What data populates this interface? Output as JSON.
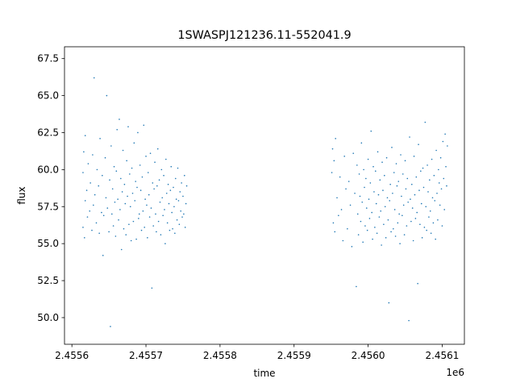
{
  "chart_data": {
    "type": "scatter",
    "title": "1SWASPJ121236.11-552041.9",
    "xlabel": "time",
    "ylabel": "flux",
    "x_offset_label": "1e6",
    "xlim": [
      2.45559,
      2.45613
    ],
    "ylim": [
      48.2,
      68.3
    ],
    "x_ticks": [
      {
        "value": 2.4556,
        "label": "2.4556"
      },
      {
        "value": 2.4557,
        "label": "2.4557"
      },
      {
        "value": 2.4558,
        "label": "2.4558"
      },
      {
        "value": 2.4559,
        "label": "2.4559"
      },
      {
        "value": 2.456,
        "label": "2.4560"
      },
      {
        "value": 2.4561,
        "label": "2.4561"
      }
    ],
    "y_ticks": [
      {
        "value": 50.0,
        "label": "50.0"
      },
      {
        "value": 52.5,
        "label": "52.5"
      },
      {
        "value": 55.0,
        "label": "55.0"
      },
      {
        "value": 57.5,
        "label": "57.5"
      },
      {
        "value": 60.0,
        "label": "60.0"
      },
      {
        "value": 62.5,
        "label": "62.5"
      },
      {
        "value": 65.0,
        "label": "65.0"
      },
      {
        "value": 67.5,
        "label": "67.5"
      }
    ],
    "grid": false,
    "color": "#1f77b4",
    "series": [
      {
        "points": [
          [
            2.455615,
            56.1
          ],
          [
            2.455615,
            59.8
          ],
          [
            2.455616,
            61.2
          ],
          [
            2.455617,
            55.4
          ],
          [
            2.455618,
            57.9
          ],
          [
            2.455618,
            62.3
          ],
          [
            2.45562,
            58.6
          ],
          [
            2.455621,
            56.8
          ],
          [
            2.455622,
            60.4
          ],
          [
            2.455624,
            57.2
          ],
          [
            2.455625,
            59.1
          ],
          [
            2.455627,
            55.9
          ],
          [
            2.455628,
            61.0
          ],
          [
            2.455629,
            57.6
          ],
          [
            2.45563,
            66.2
          ],
          [
            2.455631,
            58.3
          ],
          [
            2.455633,
            56.4
          ],
          [
            2.455634,
            60.0
          ],
          [
            2.455636,
            58.9
          ],
          [
            2.455637,
            55.7
          ],
          [
            2.455638,
            62.1
          ],
          [
            2.45564,
            57.1
          ],
          [
            2.455641,
            59.6
          ],
          [
            2.455642,
            54.2
          ],
          [
            2.455643,
            56.9
          ],
          [
            2.455645,
            60.8
          ],
          [
            2.455646,
            58.1
          ],
          [
            2.455647,
            65.0
          ],
          [
            2.455648,
            57.4
          ],
          [
            2.45565,
            55.8
          ],
          [
            2.455651,
            59.3
          ],
          [
            2.455652,
            49.4
          ],
          [
            2.455653,
            61.6
          ],
          [
            2.455654,
            57.0
          ],
          [
            2.455655,
            58.7
          ],
          [
            2.455656,
            56.2
          ],
          [
            2.455657,
            60.2
          ],
          [
            2.455658,
            57.8
          ],
          [
            2.455659,
            55.5
          ],
          [
            2.45566,
            59.9
          ],
          [
            2.455661,
            62.7
          ],
          [
            2.455662,
            58.0
          ],
          [
            2.455663,
            56.6
          ],
          [
            2.455664,
            63.4
          ],
          [
            2.455665,
            57.3
          ],
          [
            2.455666,
            59.4
          ],
          [
            2.455667,
            54.6
          ],
          [
            2.455668,
            58.5
          ],
          [
            2.455669,
            61.3
          ],
          [
            2.45567,
            56.0
          ],
          [
            2.455671,
            59.0
          ],
          [
            2.455672,
            57.7
          ],
          [
            2.455673,
            55.6
          ],
          [
            2.455674,
            60.6
          ],
          [
            2.455675,
            58.2
          ],
          [
            2.455676,
            62.9
          ],
          [
            2.455677,
            56.3
          ],
          [
            2.455678,
            59.7
          ],
          [
            2.455679,
            57.5
          ],
          [
            2.45568,
            55.2
          ],
          [
            2.455681,
            60.1
          ],
          [
            2.455682,
            58.4
          ],
          [
            2.455683,
            56.5
          ],
          [
            2.455684,
            61.8
          ],
          [
            2.455685,
            57.9
          ],
          [
            2.455686,
            59.2
          ],
          [
            2.455687,
            55.3
          ],
          [
            2.455688,
            58.8
          ],
          [
            2.455689,
            62.5
          ],
          [
            2.45569,
            56.7
          ],
          [
            2.455691,
            57.0
          ],
          [
            2.455692,
            60.3
          ],
          [
            2.455693,
            58.6
          ],
          [
            2.455694,
            55.9
          ],
          [
            2.455695,
            59.5
          ],
          [
            2.455696,
            57.2
          ],
          [
            2.455697,
            63.0
          ],
          [
            2.455698,
            56.1
          ],
          [
            2.455699,
            58.0
          ],
          [
            2.4557,
            60.9
          ],
          [
            2.455701,
            57.6
          ],
          [
            2.455702,
            55.4
          ],
          [
            2.455703,
            59.8
          ],
          [
            2.455704,
            58.3
          ],
          [
            2.455705,
            56.8
          ],
          [
            2.455706,
            61.1
          ],
          [
            2.455707,
            57.4
          ],
          [
            2.455708,
            52.0
          ],
          [
            2.455709,
            59.1
          ],
          [
            2.45571,
            56.2
          ],
          [
            2.455711,
            58.7
          ],
          [
            2.455712,
            60.5
          ],
          [
            2.455713,
            57.0
          ],
          [
            2.455714,
            55.8
          ],
          [
            2.455715,
            58.9
          ],
          [
            2.455716,
            61.4
          ],
          [
            2.455717,
            56.5
          ],
          [
            2.455718,
            59.3
          ],
          [
            2.455719,
            57.8
          ],
          [
            2.45572,
            55.6
          ],
          [
            2.455721,
            60.0
          ],
          [
            2.455722,
            58.1
          ],
          [
            2.455723,
            56.9
          ],
          [
            2.455724,
            59.6
          ],
          [
            2.455725,
            57.3
          ],
          [
            2.455726,
            55.0
          ],
          [
            2.455727,
            60.7
          ],
          [
            2.455728,
            58.4
          ],
          [
            2.455729,
            56.4
          ],
          [
            2.45573,
            59.0
          ],
          [
            2.455731,
            57.7
          ],
          [
            2.455732,
            55.9
          ],
          [
            2.455733,
            58.6
          ],
          [
            2.455734,
            60.2
          ],
          [
            2.455735,
            57.1
          ],
          [
            2.455736,
            56.0
          ],
          [
            2.455737,
            58.8
          ],
          [
            2.455738,
            57.5
          ],
          [
            2.455739,
            55.7
          ],
          [
            2.45574,
            59.4
          ],
          [
            2.455741,
            58.0
          ],
          [
            2.455742,
            56.6
          ],
          [
            2.455743,
            60.1
          ],
          [
            2.455744,
            57.9
          ],
          [
            2.455745,
            56.3
          ],
          [
            2.455746,
            58.5
          ],
          [
            2.455747,
            57.2
          ],
          [
            2.455748,
            59.1
          ],
          [
            2.455749,
            56.8
          ],
          [
            2.45575,
            58.2
          ],
          [
            2.455751,
            57.0
          ],
          [
            2.455752,
            59.6
          ],
          [
            2.455753,
            56.1
          ],
          [
            2.455754,
            57.7
          ],
          [
            2.455755,
            58.9
          ],
          [
            2.455951,
            59.8
          ],
          [
            2.455952,
            61.4
          ],
          [
            2.455953,
            56.4
          ],
          [
            2.455954,
            60.6
          ],
          [
            2.455955,
            55.8
          ],
          [
            2.455956,
            62.1
          ],
          [
            2.455958,
            58.1
          ],
          [
            2.45596,
            56.9
          ],
          [
            2.455962,
            59.5
          ],
          [
            2.455964,
            57.3
          ],
          [
            2.455966,
            55.2
          ],
          [
            2.455968,
            60.9
          ],
          [
            2.45597,
            58.7
          ],
          [
            2.455972,
            56.0
          ],
          [
            2.455974,
            59.2
          ],
          [
            2.455976,
            57.6
          ],
          [
            2.455978,
            54.8
          ],
          [
            2.45598,
            61.1
          ],
          [
            2.455982,
            58.4
          ],
          [
            2.455984,
            52.1
          ],
          [
            2.455985,
            60.3
          ],
          [
            2.455986,
            57.0
          ],
          [
            2.455987,
            55.6
          ],
          [
            2.455988,
            59.7
          ],
          [
            2.455989,
            58.2
          ],
          [
            2.45599,
            56.5
          ],
          [
            2.455991,
            61.8
          ],
          [
            2.455992,
            57.8
          ],
          [
            2.455993,
            55.1
          ],
          [
            2.455994,
            60.0
          ],
          [
            2.455995,
            58.8
          ],
          [
            2.455996,
            56.2
          ],
          [
            2.455997,
            59.4
          ],
          [
            2.455998,
            57.4
          ],
          [
            2.455999,
            55.9
          ],
          [
            2.456,
            60.7
          ],
          [
            2.456001,
            58.0
          ],
          [
            2.456002,
            56.7
          ],
          [
            2.456003,
            59.1
          ],
          [
            2.456004,
            62.6
          ],
          [
            2.456005,
            57.1
          ],
          [
            2.456006,
            55.3
          ],
          [
            2.456007,
            60.2
          ],
          [
            2.456008,
            58.5
          ],
          [
            2.456009,
            56.1
          ],
          [
            2.45601,
            59.9
          ],
          [
            2.456011,
            57.7
          ],
          [
            2.456012,
            55.7
          ],
          [
            2.456013,
            61.2
          ],
          [
            2.456014,
            58.3
          ],
          [
            2.456015,
            56.8
          ],
          [
            2.456016,
            59.3
          ],
          [
            2.456017,
            57.2
          ],
          [
            2.456018,
            54.9
          ],
          [
            2.456019,
            60.5
          ],
          [
            2.45602,
            58.6
          ],
          [
            2.456021,
            56.3
          ],
          [
            2.456022,
            59.6
          ],
          [
            2.456023,
            57.5
          ],
          [
            2.456024,
            55.4
          ],
          [
            2.456025,
            60.8
          ],
          [
            2.456026,
            58.1
          ],
          [
            2.456027,
            56.6
          ],
          [
            2.456028,
            51.0
          ],
          [
            2.456029,
            57.9
          ],
          [
            2.45603,
            59.0
          ],
          [
            2.456031,
            55.8
          ],
          [
            2.456032,
            61.5
          ],
          [
            2.456033,
            58.4
          ],
          [
            2.456034,
            56.0
          ],
          [
            2.456035,
            59.8
          ],
          [
            2.456036,
            57.3
          ],
          [
            2.456037,
            55.5
          ],
          [
            2.456038,
            60.4
          ],
          [
            2.456039,
            58.9
          ],
          [
            2.45604,
            56.4
          ],
          [
            2.456041,
            59.2
          ],
          [
            2.456042,
            57.0
          ],
          [
            2.456043,
            55.0
          ],
          [
            2.456044,
            61.0
          ],
          [
            2.456045,
            58.2
          ],
          [
            2.456046,
            56.9
          ],
          [
            2.456047,
            59.7
          ],
          [
            2.456048,
            57.6
          ],
          [
            2.456049,
            55.6
          ],
          [
            2.45605,
            60.6
          ],
          [
            2.456051,
            58.7
          ],
          [
            2.456052,
            56.2
          ],
          [
            2.456053,
            59.4
          ],
          [
            2.456054,
            57.8
          ],
          [
            2.456055,
            49.8
          ],
          [
            2.456056,
            62.2
          ],
          [
            2.456057,
            58.0
          ],
          [
            2.456058,
            56.5
          ],
          [
            2.456059,
            59.0
          ],
          [
            2.45606,
            57.4
          ],
          [
            2.456061,
            55.2
          ],
          [
            2.456062,
            60.9
          ],
          [
            2.456063,
            58.3
          ],
          [
            2.456064,
            56.7
          ],
          [
            2.456065,
            59.5
          ],
          [
            2.456066,
            57.1
          ],
          [
            2.456067,
            52.3
          ],
          [
            2.456068,
            61.7
          ],
          [
            2.456069,
            58.6
          ],
          [
            2.45607,
            56.3
          ],
          [
            2.456071,
            59.9
          ],
          [
            2.456072,
            57.7
          ],
          [
            2.456073,
            55.4
          ],
          [
            2.456074,
            60.1
          ],
          [
            2.456075,
            58.8
          ],
          [
            2.456076,
            56.1
          ],
          [
            2.456077,
            63.2
          ],
          [
            2.456078,
            57.5
          ],
          [
            2.456079,
            55.9
          ],
          [
            2.45608,
            60.3
          ],
          [
            2.456081,
            58.5
          ],
          [
            2.456082,
            56.8
          ],
          [
            2.456083,
            59.3
          ],
          [
            2.456084,
            57.2
          ],
          [
            2.456085,
            55.7
          ],
          [
            2.456086,
            60.7
          ],
          [
            2.456087,
            58.1
          ],
          [
            2.456088,
            56.4
          ],
          [
            2.456089,
            59.6
          ],
          [
            2.45609,
            57.9
          ],
          [
            2.456091,
            55.3
          ],
          [
            2.456092,
            61.3
          ],
          [
            2.456093,
            58.4
          ],
          [
            2.456094,
            56.6
          ],
          [
            2.456095,
            60.0
          ],
          [
            2.456096,
            59.1
          ],
          [
            2.456097,
            57.6
          ],
          [
            2.456098,
            60.8
          ],
          [
            2.456099,
            58.7
          ],
          [
            2.4561,
            56.2
          ],
          [
            2.456101,
            61.9
          ],
          [
            2.456102,
            59.4
          ],
          [
            2.456103,
            57.3
          ],
          [
            2.456104,
            62.4
          ],
          [
            2.456105,
            60.2
          ],
          [
            2.456106,
            58.9
          ],
          [
            2.456107,
            61.6
          ]
        ]
      }
    ]
  }
}
